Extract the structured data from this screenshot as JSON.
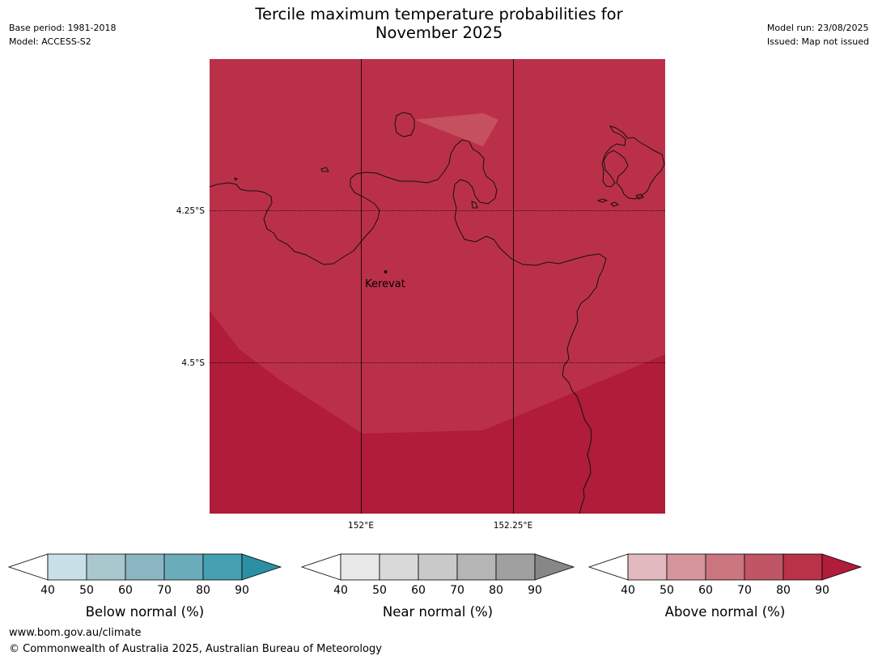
{
  "header": {
    "title_line1": "Tercile maximum temperature probabilities for",
    "title_line2": "November 2025",
    "base_period": "Base period: 1981-2018",
    "model": "Model: ACCESS-S2",
    "model_run": "Model run: 23/08/2025",
    "issued": "Issued: Map not issued"
  },
  "map": {
    "lat_labels": [
      "4.25°S",
      "4.5°S"
    ],
    "lon_labels": [
      "152°E",
      "152.25°E"
    ],
    "places": [
      {
        "name": "Kerevat"
      }
    ],
    "shading_colors": {
      "above_80_90": "#bb3049",
      "above_90": "#b01c39",
      "patch_70_80": "#c5505e"
    }
  },
  "legends": [
    {
      "label": "Below normal (%)",
      "ticks": [
        "40",
        "50",
        "60",
        "70",
        "80",
        "90"
      ],
      "colors": [
        "#ffffff",
        "#c9e1e6",
        "#a8c8ce",
        "#89b6c2",
        "#6aacba",
        "#45a0b1",
        "#2b8fa3"
      ]
    },
    {
      "label": "Near normal (%)",
      "ticks": [
        "40",
        "50",
        "60",
        "70",
        "80",
        "90"
      ],
      "colors": [
        "#ffffff",
        "#e8e8e8",
        "#d9d9d9",
        "#c9c9c9",
        "#b5b5b5",
        "#a0a0a0",
        "#878787"
      ]
    },
    {
      "label": "Above normal (%)",
      "ticks": [
        "40",
        "50",
        "60",
        "70",
        "80",
        "90"
      ],
      "colors": [
        "#ffffff",
        "#e2b9be",
        "#d6959d",
        "#cb757e",
        "#c05665",
        "#ba3248",
        "#b01c39"
      ]
    }
  ],
  "footer": {
    "url": "www.bom.gov.au/climate",
    "copyright": "© Commonwealth of Australia 2025, Australian Bureau of Meteorology"
  }
}
